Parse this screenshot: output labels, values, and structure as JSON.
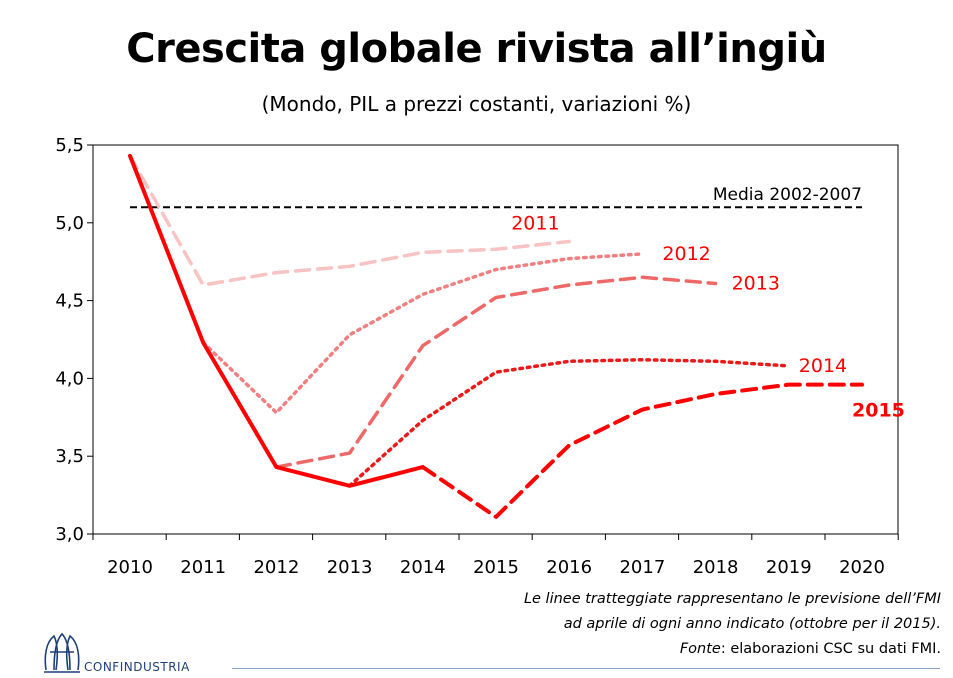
{
  "title": "Crescita globale rivista all’ingiù",
  "subtitle": "(Mondo, PIL a prezzi costanti, variazioni %)",
  "notes": {
    "line1": "Le linee tratteggiate rappresentano le previsione dell’FMI",
    "line2": "ad aprile di ogni anno indicato (ottobre per il 2015).",
    "source_label": "Fonte",
    "source_text": ": elaborazioni CSC su dati FMI."
  },
  "logo": {
    "name": "confindustria-logo",
    "text": "CONFINDUSTRIA"
  },
  "colors": {
    "red": "#ff0000",
    "s2011": "#f7c3c3",
    "s2012": "#f08080",
    "s2013": "#ee6868",
    "s2014": "#e81a1a",
    "s2015": "#ff0000",
    "reference": "#000000",
    "footer_rule": "#8aa3c8",
    "logo_blue": "#1e3f7a"
  },
  "chart_data": {
    "type": "line",
    "title": "Crescita globale rivista all’ingiù",
    "subtitle": "(Mondo, PIL a prezzi costanti, variazioni %)",
    "xlabel": "",
    "ylabel": "",
    "x_ticks": [
      "2010",
      "2011",
      "2012",
      "2013",
      "2014",
      "2015",
      "2016",
      "2017",
      "2018",
      "2019",
      "2020"
    ],
    "y_ticks": [
      "3,0",
      "3,5",
      "4,0",
      "4,5",
      "5,0",
      "5,5"
    ],
    "ylim": [
      3.0,
      5.5
    ],
    "xlim": [
      2010,
      2020
    ],
    "grid": false,
    "legend": "inline labels at line ends",
    "actual": {
      "x": [
        2010,
        2011,
        2012,
        2013,
        2014
      ],
      "y": [
        5.43,
        4.23,
        3.43,
        3.31,
        3.43
      ]
    },
    "reference_line": {
      "name": "Media 2002-2007",
      "value": 5.1,
      "x_range": [
        2010,
        2020
      ]
    },
    "forecasts": [
      {
        "name": "2011",
        "style": "dashed",
        "color_key": "s2011",
        "x": [
          2010,
          2011,
          2012,
          2013,
          2014,
          2015,
          2016
        ],
        "y": [
          5.43,
          4.6,
          4.68,
          4.72,
          4.81,
          4.83,
          4.88
        ]
      },
      {
        "name": "2012",
        "style": "dotted",
        "color_key": "s2012",
        "x": [
          2011,
          2012,
          2013,
          2014,
          2015,
          2016,
          2017
        ],
        "y": [
          4.23,
          3.78,
          4.28,
          4.54,
          4.7,
          4.77,
          4.8
        ]
      },
      {
        "name": "2013",
        "style": "dashed",
        "color_key": "s2013",
        "x": [
          2012,
          2013,
          2014,
          2015,
          2016,
          2017,
          2018
        ],
        "y": [
          3.43,
          3.52,
          4.21,
          4.52,
          4.6,
          4.65,
          4.61
        ]
      },
      {
        "name": "2014",
        "style": "dotted",
        "color_key": "s2014",
        "x": [
          2013,
          2014,
          2015,
          2016,
          2017,
          2018,
          2019
        ],
        "y": [
          3.31,
          3.73,
          4.04,
          4.11,
          4.12,
          4.11,
          4.08
        ]
      },
      {
        "name": "2015",
        "style": "dashed",
        "color_key": "s2015",
        "bold_label": true,
        "x": [
          2014,
          2015,
          2016,
          2017,
          2018,
          2019,
          2020
        ],
        "y": [
          3.43,
          3.11,
          3.57,
          3.8,
          3.9,
          3.96,
          3.96
        ]
      }
    ]
  }
}
